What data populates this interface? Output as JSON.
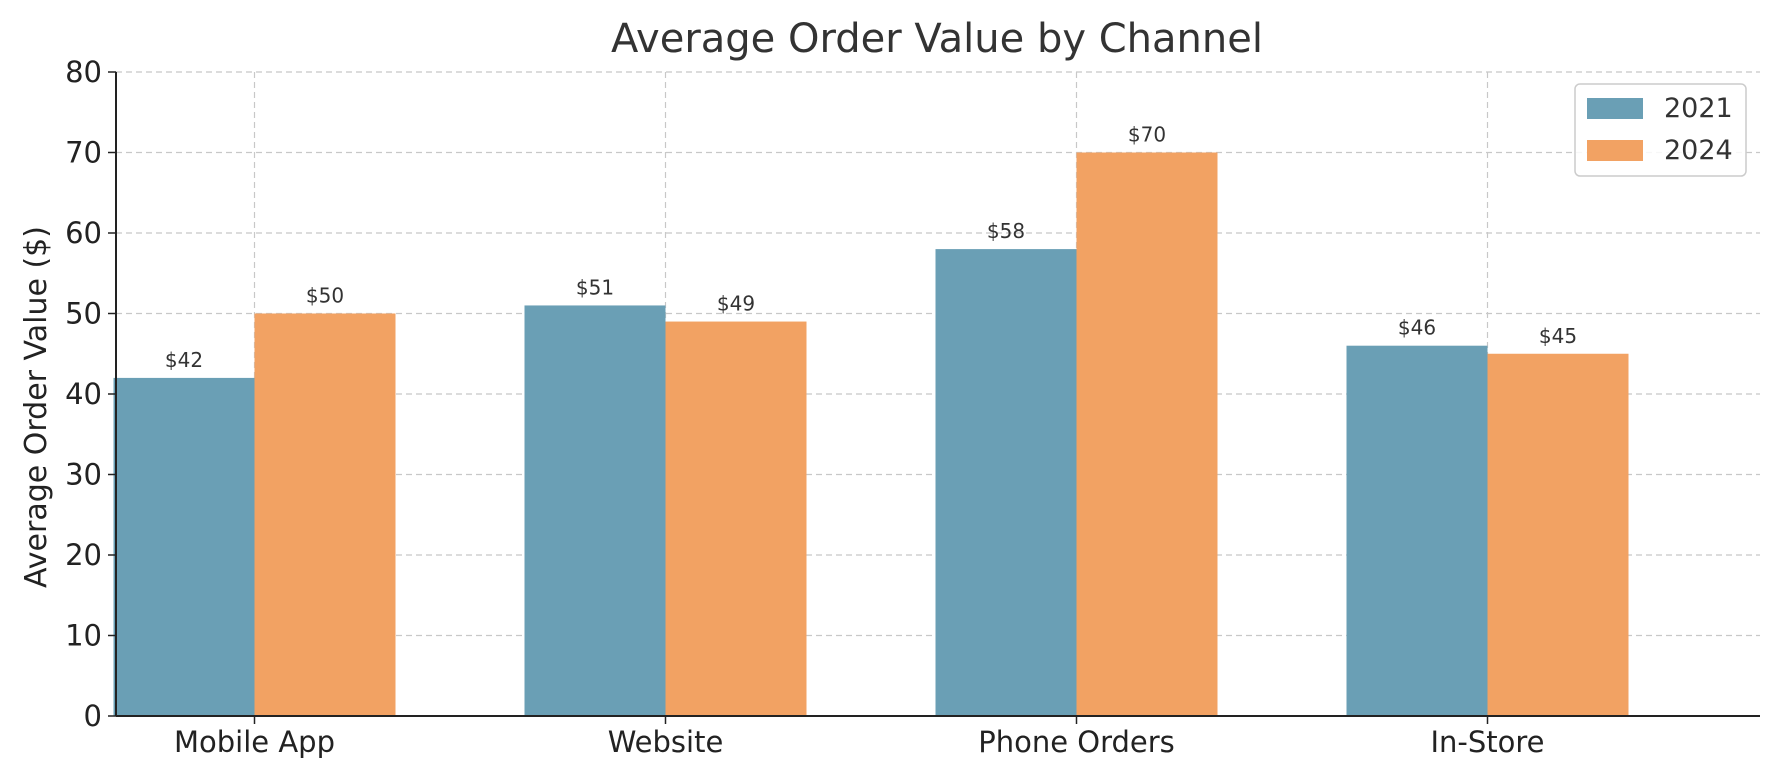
{
  "chart_data": {
    "type": "bar",
    "title": "Average Order Value by Channel",
    "xlabel": "",
    "ylabel": "Average Order Value ($)",
    "ylim": [
      0,
      80
    ],
    "yticks": [
      0,
      10,
      20,
      30,
      40,
      50,
      60,
      70,
      80
    ],
    "grid": true,
    "legend_position": "top-right",
    "categories": [
      "Mobile App",
      "Website",
      "Phone Orders",
      "In-Store"
    ],
    "series": [
      {
        "name": "2021",
        "color": "#6a9fb5",
        "values": [
          42,
          51,
          58,
          46
        ],
        "labels": [
          "$42",
          "$51",
          "$58",
          "$46"
        ]
      },
      {
        "name": "2024",
        "color": "#f2a263",
        "values": [
          50,
          49,
          70,
          45
        ],
        "labels": [
          "$50",
          "$49",
          "$70",
          "$45"
        ]
      }
    ]
  }
}
